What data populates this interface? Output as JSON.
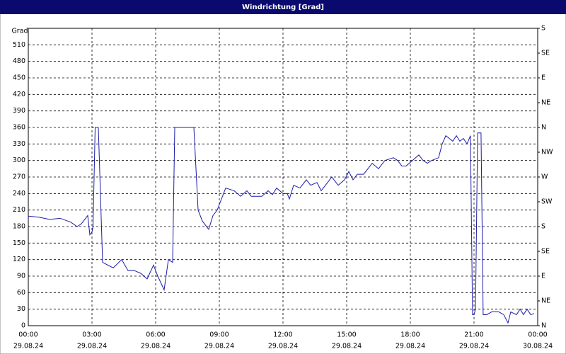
{
  "chart_data": {
    "type": "line",
    "title": "Windrichtung [Grad]",
    "ylabel": "Grad",
    "color": "#1c1ca8",
    "x": [
      0,
      0.5,
      1,
      1.5,
      2,
      2.3,
      2.5,
      2.7,
      2.8,
      2.9,
      3.0,
      3.05,
      3.15,
      3.3,
      3.5,
      4.0,
      4.4,
      4.7,
      5.0,
      5.3,
      5.6,
      5.9,
      6.1,
      6.4,
      6.6,
      6.8,
      6.9,
      7.8,
      8.0,
      8.2,
      8.5,
      8.7,
      8.9,
      9.2,
      9.3,
      9.7,
      10,
      10.3,
      10.5,
      11,
      11.3,
      11.5,
      11.7,
      12,
      12.2,
      12.3,
      12.5,
      12.8,
      13.1,
      13.3,
      13.6,
      13.8,
      14.1,
      14.3,
      14.6,
      14.9,
      15.1,
      15.3,
      15.5,
      15.8,
      16.2,
      16.5,
      16.8,
      17.2,
      17.4,
      17.6,
      17.8,
      18.1,
      18.4,
      18.6,
      18.8,
      19,
      19.33,
      19.5,
      19.67,
      20,
      20.17,
      20.33,
      20.5,
      20.67,
      20.83,
      20.93,
      21,
      21.07,
      21.17,
      21.33,
      21.43,
      21.6,
      21.83,
      22.17,
      22.4,
      22.6,
      22.73,
      23,
      23.17,
      23.33,
      23.5,
      23.67,
      23.83
    ],
    "values": [
      199,
      197,
      193,
      195,
      188,
      180,
      185,
      195,
      200,
      165,
      170,
      180,
      360,
      360,
      115,
      105,
      120,
      100,
      100,
      95,
      85,
      110,
      90,
      65,
      120,
      115,
      360,
      360,
      210,
      190,
      175,
      200,
      210,
      240,
      250,
      245,
      235,
      245,
      235,
      235,
      245,
      238,
      250,
      240,
      240,
      230,
      255,
      250,
      265,
      255,
      260,
      245,
      260,
      270,
      255,
      265,
      280,
      265,
      275,
      275,
      295,
      285,
      300,
      305,
      300,
      290,
      290,
      300,
      310,
      300,
      295,
      300,
      305,
      330,
      345,
      335,
      345,
      335,
      340,
      330,
      345,
      20,
      20,
      30,
      350,
      350,
      20,
      20,
      25,
      25,
      20,
      5,
      25,
      20,
      30,
      20,
      30,
      20,
      22
    ],
    "xlim": [
      0,
      24
    ],
    "xticks": [
      {
        "value": 0,
        "label": "00:00"
      },
      {
        "value": 3,
        "label": "03:00"
      },
      {
        "value": 6,
        "label": "06:00"
      },
      {
        "value": 9,
        "label": "09:00"
      },
      {
        "value": 12,
        "label": "12:00"
      },
      {
        "value": 15,
        "label": "15:00"
      },
      {
        "value": 18,
        "label": "18:00"
      },
      {
        "value": 21,
        "label": "21:00"
      },
      {
        "value": 24,
        "label": "00:00"
      }
    ],
    "xtick_dates": [
      "29.08.24",
      "29.08.24",
      "29.08.24",
      "29.08.24",
      "29.08.24",
      "29.08.24",
      "29.08.24",
      "29.08.24",
      "30.08.24"
    ],
    "ylim": [
      0,
      540
    ],
    "yticks": [
      0,
      30,
      60,
      90,
      120,
      150,
      180,
      210,
      240,
      270,
      300,
      330,
      360,
      390,
      420,
      450,
      480,
      510
    ],
    "y2lim": [
      0,
      540
    ],
    "y2ticks": [
      {
        "value": 0,
        "label": "N"
      },
      {
        "value": 45,
        "label": "NE"
      },
      {
        "value": 90,
        "label": "E"
      },
      {
        "value": 135,
        "label": "SE"
      },
      {
        "value": 180,
        "label": "S"
      },
      {
        "value": 225,
        "label": "SW"
      },
      {
        "value": 270,
        "label": "W"
      },
      {
        "value": 315,
        "label": "NW"
      },
      {
        "value": 360,
        "label": "N"
      },
      {
        "value": 405,
        "label": "NE"
      },
      {
        "value": 450,
        "label": "E"
      },
      {
        "value": 495,
        "label": "SE"
      },
      {
        "value": 540,
        "label": "S"
      }
    ],
    "grid": true
  }
}
